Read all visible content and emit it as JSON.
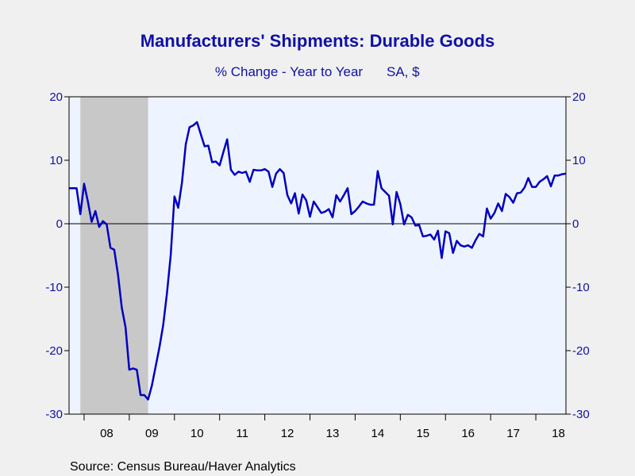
{
  "chart_data": {
    "type": "line",
    "title": "Manufacturers' Shipments: Durable Goods",
    "subtitle": "% Change - Year to Year",
    "subtitle_note": "SA, $",
    "source": "Source:  Census Bureau/Haver Analytics",
    "xlabel": "",
    "ylabel": "",
    "x_start": "2007-09",
    "x_end": "2018-09",
    "x_ticks": [
      "08",
      "09",
      "10",
      "11",
      "12",
      "13",
      "14",
      "15",
      "16",
      "17",
      "18"
    ],
    "ylim": [
      -30,
      20
    ],
    "y_ticks": [
      "20",
      "10",
      "0",
      "-10",
      "-20",
      "-30"
    ],
    "grid": false,
    "zero_line": true,
    "recession": {
      "start": "2007-12",
      "end": "2009-06"
    },
    "colors": {
      "line": "#0000c0",
      "text": "#1010a8",
      "plot_bg": "#eef4ff",
      "recession": "#c8c8c8",
      "outer_bg": "#f0f0f0"
    },
    "series": [
      {
        "values": [
          5.6,
          5.6,
          5.6,
          1.5,
          6.3,
          3.5,
          0.3,
          2.0,
          -0.5,
          0.4,
          -0.1,
          -3.8,
          -4.1,
          -8.0,
          -13.2,
          -16.3,
          -23.0,
          -22.8,
          -23.0,
          -27.0,
          -27.0,
          -27.7,
          -25.5,
          -22.5,
          -19.5,
          -16.0,
          -11.0,
          -5.0,
          4.3,
          2.5,
          6.5,
          12.5,
          15.2,
          15.5,
          16.0,
          14.1,
          12.2,
          12.3,
          9.7,
          9.8,
          9.2,
          11.3,
          13.3,
          8.5,
          7.7,
          8.2,
          8.0,
          8.2,
          6.6,
          8.5,
          8.4,
          8.4,
          8.6,
          8.2,
          5.8,
          7.9,
          8.6,
          8.0,
          4.5,
          3.2,
          4.8,
          1.6,
          4.6,
          3.7,
          1.1,
          3.5,
          2.6,
          1.7,
          1.9,
          2.3,
          1.0,
          4.5,
          3.5,
          4.5,
          5.6,
          1.5,
          2.0,
          2.7,
          3.5,
          3.2,
          3.0,
          3.0,
          8.3,
          5.6,
          5.0,
          4.4,
          -0.1,
          5.0,
          3.1,
          -0.1,
          1.4,
          1.0,
          -0.3,
          -0.2,
          -2.0,
          -1.9,
          -1.7,
          -2.5,
          -1.1,
          -5.4,
          -1.2,
          -1.5,
          -4.6,
          -2.7,
          -3.4,
          -3.6,
          -3.4,
          -3.8,
          -2.6,
          -1.6,
          -2.0,
          2.4,
          0.8,
          1.7,
          3.2,
          2.0,
          4.7,
          4.2,
          3.3,
          4.8,
          4.9,
          5.7,
          7.2,
          5.8,
          5.8,
          6.6,
          7.0,
          7.5,
          5.9,
          7.6,
          7.6,
          7.8,
          7.9
        ]
      }
    ]
  }
}
